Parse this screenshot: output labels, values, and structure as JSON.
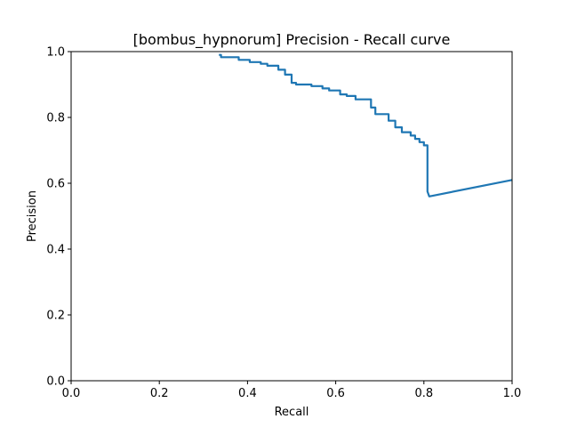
{
  "chart_data": {
    "type": "line",
    "title": "[bombus_hypnorum] Precision - Recall curve",
    "xlabel": "Recall",
    "ylabel": "Precision",
    "xlim": [
      0.0,
      1.0
    ],
    "ylim": [
      0.0,
      1.0
    ],
    "grid": false,
    "line_color": "#1f77b4",
    "x_ticks": [
      "0.0",
      "0.2",
      "0.4",
      "0.6",
      "0.8",
      "1.0"
    ],
    "y_ticks": [
      "0.0",
      "0.2",
      "0.4",
      "0.6",
      "0.8",
      "1.0"
    ],
    "series": [
      {
        "x": [
          0.335,
          0.34,
          0.34,
          0.38,
          0.38,
          0.405,
          0.405,
          0.43,
          0.43,
          0.445,
          0.445,
          0.47,
          0.47,
          0.485,
          0.485,
          0.5,
          0.5,
          0.51,
          0.51,
          0.545,
          0.545,
          0.57,
          0.57,
          0.585,
          0.585,
          0.61,
          0.61,
          0.625,
          0.625,
          0.645,
          0.645,
          0.68,
          0.68,
          0.69,
          0.69,
          0.72,
          0.72,
          0.735,
          0.735,
          0.75,
          0.75,
          0.77,
          0.77,
          0.78,
          0.78,
          0.79,
          0.79,
          0.8,
          0.8,
          0.808,
          0.808,
          0.812,
          1.0
        ],
        "y": [
          0.99,
          0.99,
          0.983,
          0.983,
          0.975,
          0.975,
          0.968,
          0.968,
          0.963,
          0.963,
          0.957,
          0.957,
          0.945,
          0.945,
          0.93,
          0.93,
          0.905,
          0.905,
          0.9,
          0.9,
          0.895,
          0.895,
          0.888,
          0.888,
          0.882,
          0.882,
          0.87,
          0.87,
          0.865,
          0.865,
          0.855,
          0.855,
          0.83,
          0.83,
          0.81,
          0.81,
          0.79,
          0.79,
          0.77,
          0.77,
          0.755,
          0.755,
          0.745,
          0.745,
          0.735,
          0.735,
          0.725,
          0.725,
          0.715,
          0.715,
          0.575,
          0.56,
          0.61
        ]
      }
    ]
  }
}
